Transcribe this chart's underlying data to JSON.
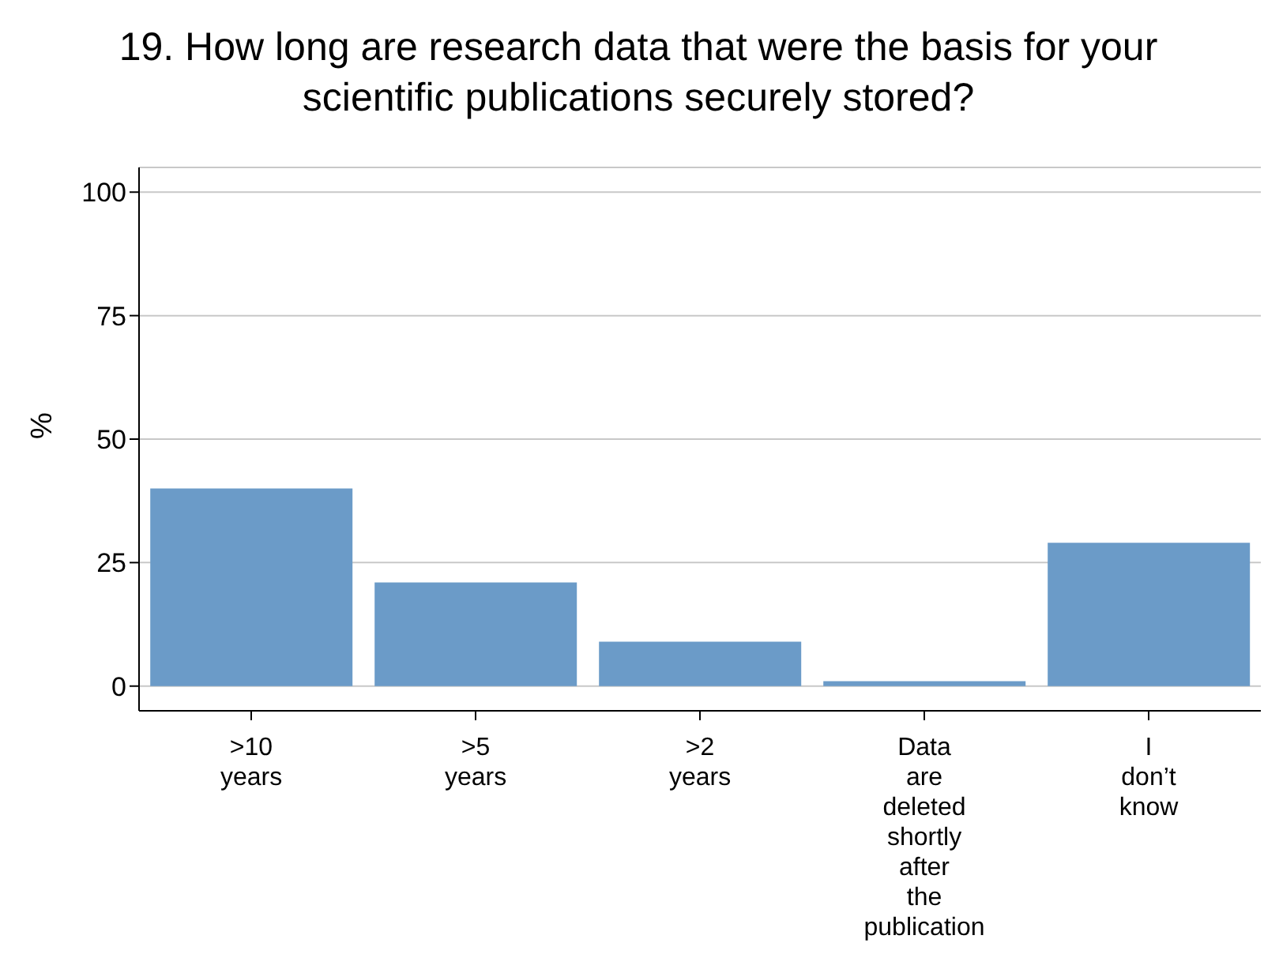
{
  "chart_data": {
    "type": "bar",
    "title": "19. How long are research data that were the basis for your scientific publications securely stored?",
    "ylabel": "%",
    "categories": [
      ">10 years",
      ">5 years",
      ">2 years",
      "Data are deleted shortly after the publication",
      "I don’t know"
    ],
    "values": [
      40,
      21,
      9,
      1,
      29
    ],
    "color": "#6b9bc8",
    "ylim": [
      -5,
      105
    ],
    "yticks": [
      0,
      25,
      50,
      75,
      100
    ],
    "grid": "y"
  }
}
